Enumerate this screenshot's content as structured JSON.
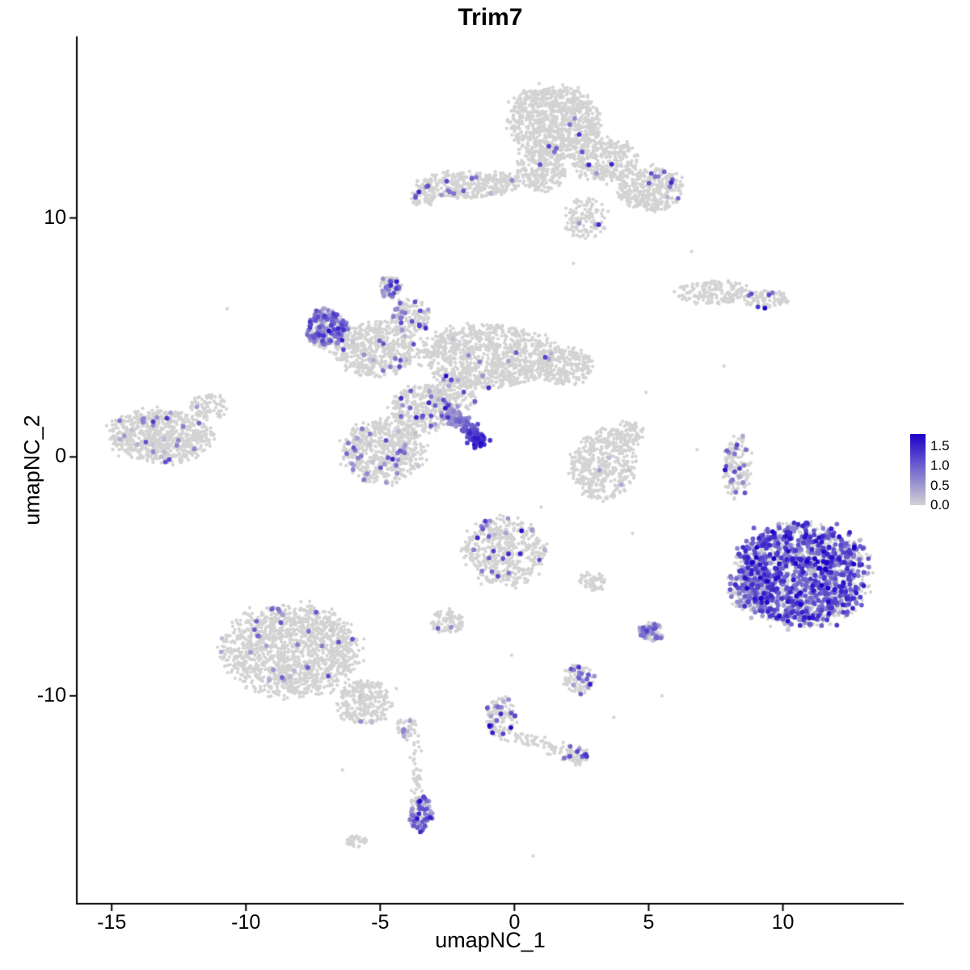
{
  "chart_data": {
    "type": "scatter",
    "title": "Trim7",
    "xlabel": "umapNC_1",
    "ylabel": "umapNC_2",
    "xlim": [
      -16.3,
      14.5
    ],
    "ylim": [
      -18.7,
      17.6
    ],
    "xticks": [
      -15,
      -10,
      -5,
      0,
      5,
      10
    ],
    "yticks": [
      10,
      0,
      -10
    ],
    "grid": false,
    "point_color_low": "#d3d3d3",
    "point_color_high": "#1a00c8",
    "legend": {
      "position": "right",
      "ticks": [
        "1.5",
        "1.0",
        "0.5",
        "0.0"
      ],
      "vmin": 0.0,
      "vmax": 1.8
    },
    "clusters": [
      {
        "name": "top-core",
        "cx": 1.5,
        "cy": 14.0,
        "rx": 1.7,
        "ry": 1.5,
        "n": 950,
        "expr_frac": 0.006,
        "expr_mean": 0.9
      },
      {
        "name": "top-neck",
        "cx": 1.0,
        "cy": 12.0,
        "rx": 0.9,
        "ry": 0.9,
        "n": 250,
        "expr_frac": 0.008,
        "expr_mean": 0.7
      },
      {
        "name": "top-right-arm",
        "cx": 3.4,
        "cy": 12.4,
        "rx": 1.2,
        "ry": 0.9,
        "n": 320,
        "expr_frac": 0.01,
        "expr_mean": 0.7
      },
      {
        "name": "top-right-lobe",
        "cx": 5.1,
        "cy": 11.2,
        "rx": 1.2,
        "ry": 0.9,
        "n": 380,
        "expr_frac": 0.02,
        "expr_mean": 0.8
      },
      {
        "name": "top-left-band",
        "cx": -1.7,
        "cy": 11.4,
        "rx": 1.9,
        "ry": 0.55,
        "n": 380,
        "expr_frac": 0.02,
        "expr_mean": 0.7
      },
      {
        "name": "top-left-small",
        "cx": -3.4,
        "cy": 10.9,
        "rx": 0.5,
        "ry": 0.4,
        "n": 60,
        "expr_frac": 0.05,
        "expr_mean": 0.6
      },
      {
        "name": "below-top-tail",
        "cx": 2.7,
        "cy": 10.0,
        "rx": 0.8,
        "ry": 0.9,
        "n": 130,
        "expr_frac": 0.01,
        "expr_mean": 0.6
      },
      {
        "name": "right-band",
        "cx": 7.4,
        "cy": 6.9,
        "rx": 1.4,
        "ry": 0.5,
        "n": 170,
        "expr_frac": 0.01,
        "expr_mean": 0.5
      },
      {
        "name": "right-band-east",
        "cx": 9.4,
        "cy": 6.6,
        "rx": 0.8,
        "ry": 0.4,
        "n": 90,
        "expr_frac": 0.05,
        "expr_mean": 1.2
      },
      {
        "name": "star-main",
        "cx": -1.0,
        "cy": 4.2,
        "rx": 2.5,
        "ry": 1.3,
        "n": 1050,
        "expr_frac": 0.015,
        "expr_mean": 0.7
      },
      {
        "name": "star-right",
        "cx": 1.9,
        "cy": 3.8,
        "rx": 1.0,
        "ry": 0.8,
        "n": 260,
        "expr_frac": 0.012,
        "expr_mean": 0.8
      },
      {
        "name": "star-left",
        "cx": -5.2,
        "cy": 4.5,
        "rx": 1.5,
        "ry": 1.1,
        "n": 520,
        "expr_frac": 0.04,
        "expr_mean": 0.7
      },
      {
        "name": "purple-patch",
        "cx": -7.0,
        "cy": 5.4,
        "rx": 0.75,
        "ry": 0.8,
        "n": 240,
        "expr_frac": 0.55,
        "expr_mean": 0.75
      },
      {
        "name": "star-top-spur",
        "cx": -4.6,
        "cy": 7.1,
        "rx": 0.4,
        "ry": 0.45,
        "n": 75,
        "expr_frac": 0.35,
        "expr_mean": 0.8
      },
      {
        "name": "star-connector",
        "cx": -3.9,
        "cy": 5.8,
        "rx": 0.7,
        "ry": 0.8,
        "n": 160,
        "expr_frac": 0.12,
        "expr_mean": 0.7
      },
      {
        "name": "star-bottom",
        "cx": -3.4,
        "cy": 2.0,
        "rx": 1.2,
        "ry": 1.0,
        "n": 340,
        "expr_frac": 0.05,
        "expr_mean": 0.7
      },
      {
        "name": "center-hang",
        "cx": -2.2,
        "cy": 2.6,
        "rx": 0.8,
        "ry": 0.8,
        "n": 150,
        "expr_frac": 0.08,
        "expr_mean": 0.8
      },
      {
        "name": "left-far",
        "cx": -13.2,
        "cy": 0.9,
        "rx": 1.9,
        "ry": 1.1,
        "n": 720,
        "expr_frac": 0.03,
        "expr_mean": 0.7
      },
      {
        "name": "left-far-arm",
        "cx": -11.4,
        "cy": 2.1,
        "rx": 0.7,
        "ry": 0.5,
        "n": 90,
        "expr_frac": 0.02,
        "expr_mean": 0.6
      },
      {
        "name": "mid-blob",
        "cx": -4.9,
        "cy": 0.2,
        "rx": 1.5,
        "ry": 1.3,
        "n": 620,
        "expr_frac": 0.05,
        "expr_mean": 0.65
      },
      {
        "name": "center-right-hook",
        "cx": 3.3,
        "cy": -0.3,
        "rx": 1.2,
        "ry": 1.4,
        "n": 430,
        "expr_frac": 0.01,
        "expr_mean": 0.6
      },
      {
        "name": "center-right-top",
        "cx": 4.2,
        "cy": 1.0,
        "rx": 0.6,
        "ry": 0.5,
        "n": 90,
        "expr_frac": 0.01,
        "expr_mean": 0.6
      },
      {
        "name": "right-strip",
        "cx": 8.3,
        "cy": -0.4,
        "rx": 0.5,
        "ry": 1.3,
        "n": 160,
        "expr_frac": 0.1,
        "expr_mean": 0.9
      },
      {
        "name": "big-right-expressing",
        "cx": 10.7,
        "cy": -4.9,
        "rx": 2.4,
        "ry": 2.1,
        "n": 1650,
        "expr_frac": 0.55,
        "expr_mean": 0.95
      },
      {
        "name": "big-right-west",
        "cx": 8.8,
        "cy": -5.3,
        "rx": 0.8,
        "ry": 1.3,
        "n": 230,
        "expr_frac": 0.45,
        "expr_mean": 0.6
      },
      {
        "name": "bottom-left",
        "cx": -8.3,
        "cy": -8.1,
        "rx": 2.5,
        "ry": 1.9,
        "n": 1450,
        "expr_frac": 0.02,
        "expr_mean": 0.7
      },
      {
        "name": "bottom-left-tail",
        "cx": -5.6,
        "cy": -10.3,
        "rx": 1.0,
        "ry": 0.9,
        "n": 280,
        "expr_frac": 0.01,
        "expr_mean": 0.6
      },
      {
        "name": "center-bottom",
        "cx": -0.4,
        "cy": -4.0,
        "rx": 1.5,
        "ry": 1.4,
        "n": 520,
        "expr_frac": 0.05,
        "expr_mean": 0.8
      },
      {
        "name": "center-bottom-west",
        "cx": -2.5,
        "cy": -6.9,
        "rx": 0.6,
        "ry": 0.5,
        "n": 90,
        "expr_frac": 0.05,
        "expr_mean": 0.6
      },
      {
        "name": "small-mid",
        "cx": 2.9,
        "cy": -5.2,
        "rx": 0.5,
        "ry": 0.4,
        "n": 60,
        "expr_frac": 0.02,
        "expr_mean": 0.6
      },
      {
        "name": "purple-blob",
        "cx": 5.1,
        "cy": -7.3,
        "rx": 0.45,
        "ry": 0.4,
        "n": 80,
        "expr_frac": 0.55,
        "expr_mean": 0.55
      },
      {
        "name": "small-lower",
        "cx": 2.4,
        "cy": -9.3,
        "rx": 0.6,
        "ry": 0.6,
        "n": 100,
        "expr_frac": 0.2,
        "expr_mean": 0.8
      },
      {
        "name": "chain-top",
        "cx": -0.5,
        "cy": -10.9,
        "rx": 0.55,
        "ry": 0.9,
        "n": 130,
        "expr_frac": 0.12,
        "expr_mean": 0.8
      },
      {
        "name": "chain-end",
        "cx": 2.3,
        "cy": -12.5,
        "rx": 0.45,
        "ry": 0.4,
        "n": 60,
        "expr_frac": 0.15,
        "expr_mean": 0.9
      },
      {
        "name": "drip-top",
        "cx": -4.0,
        "cy": -11.3,
        "rx": 0.4,
        "ry": 0.4,
        "n": 45,
        "expr_frac": 0.05,
        "expr_mean": 0.6
      },
      {
        "name": "drip-bottom",
        "cx": -3.5,
        "cy": -14.9,
        "rx": 0.4,
        "ry": 0.8,
        "n": 100,
        "expr_frac": 0.5,
        "expr_mean": 0.8
      },
      {
        "name": "tiny-bottom",
        "cx": -5.9,
        "cy": -16.1,
        "rx": 0.4,
        "ry": 0.25,
        "n": 45,
        "expr_frac": 0.02,
        "expr_mean": 0.5
      }
    ],
    "streaks": [
      {
        "name": "gradient-streak",
        "x1": -2.5,
        "y1": 2.0,
        "x2": -1.15,
        "y2": 0.55,
        "n": 130,
        "width": 0.15,
        "v1": 0.4,
        "v2": 1.5
      },
      {
        "name": "chain-link",
        "x1": -0.2,
        "y1": -11.6,
        "x2": 2.0,
        "y2": -12.4,
        "n": 70,
        "width": 0.15,
        "v1": 0,
        "v2": 0
      },
      {
        "name": "drip-line",
        "x1": -3.8,
        "y1": -11.6,
        "x2": -3.55,
        "y2": -14.2,
        "n": 45,
        "width": 0.12,
        "v1": 0,
        "v2": 0
      }
    ],
    "singles": {
      "pts": [
        [
          -10.7,
          6.2
        ],
        [
          6.6,
          8.6
        ],
        [
          2.2,
          8.1
        ],
        [
          4.9,
          2.7
        ],
        [
          7.8,
          3.8
        ],
        [
          6.8,
          0.3
        ],
        [
          1.0,
          -2.1
        ],
        [
          4.4,
          -3.2
        ],
        [
          -0.1,
          -8.3
        ],
        [
          3.7,
          -10.9
        ],
        [
          -6.4,
          -13.1
        ],
        [
          0.7,
          -16.7
        ],
        [
          -4.4,
          -9.7
        ],
        [
          5.5,
          -10.0
        ]
      ]
    }
  }
}
